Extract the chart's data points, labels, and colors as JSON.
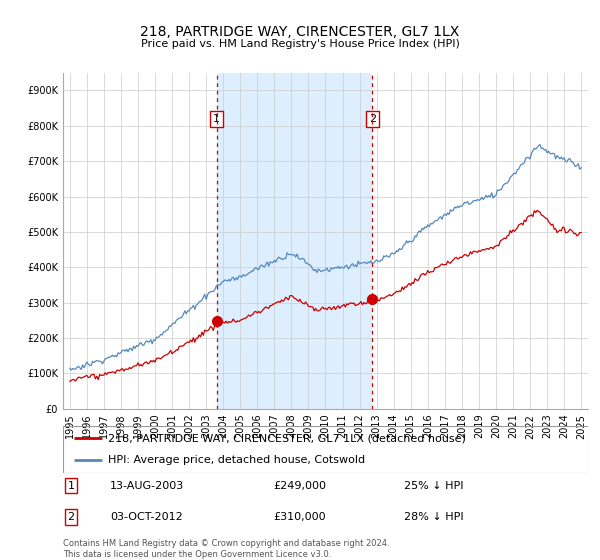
{
  "title": "218, PARTRIDGE WAY, CIRENCESTER, GL7 1LX",
  "subtitle": "Price paid vs. HM Land Registry's House Price Index (HPI)",
  "footer": "Contains HM Land Registry data © Crown copyright and database right 2024.\nThis data is licensed under the Open Government Licence v3.0.",
  "legend_line1": "218, PARTRIDGE WAY, CIRENCESTER, GL7 1LX (detached house)",
  "legend_line2": "HPI: Average price, detached house, Cotswold",
  "sale1_date": "13-AUG-2003",
  "sale1_price": "£249,000",
  "sale1_hpi": "25% ↓ HPI",
  "sale1_year": 2003.62,
  "sale1_value": 249000,
  "sale2_date": "03-OCT-2012",
  "sale2_price": "£310,000",
  "sale2_hpi": "28% ↓ HPI",
  "sale2_year": 2012.75,
  "sale2_value": 310000,
  "price_color": "#cc0000",
  "hpi_color": "#5588bb",
  "shade_color": "#ddeeff",
  "vline_color": "#cc0000",
  "marker_color": "#cc0000",
  "ylim_min": 0,
  "ylim_max": 950000,
  "yticks": [
    0,
    100000,
    200000,
    300000,
    400000,
    500000,
    600000,
    700000,
    800000,
    900000
  ],
  "ytick_labels": [
    "£0",
    "£100K",
    "£200K",
    "£300K",
    "£400K",
    "£500K",
    "£600K",
    "£700K",
    "£800K",
    "£900K"
  ],
  "xlim_start": 1994.6,
  "xlim_end": 2025.4,
  "title_fontsize": 10,
  "subtitle_fontsize": 8,
  "tick_fontsize": 7,
  "legend_fontsize": 8
}
